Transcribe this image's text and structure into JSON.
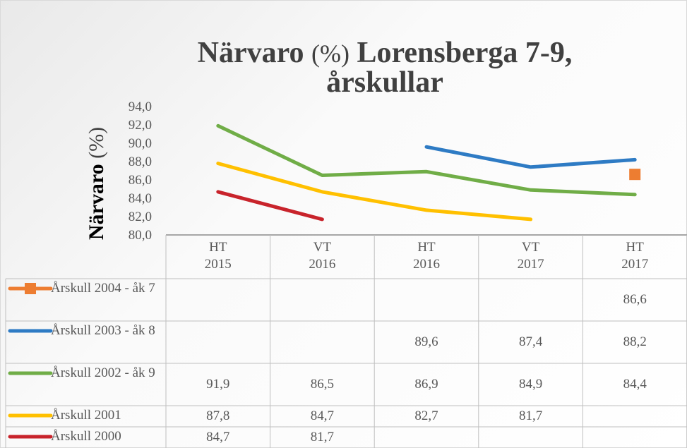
{
  "chart_data": {
    "type": "line",
    "title": [
      "Närvaro",
      "(%)",
      "Lorensberga 7-9,",
      "årskullar"
    ],
    "ylabel": [
      "Närvaro",
      "(%)"
    ],
    "categories": [
      "HT 2015",
      "VT 2016",
      "HT 2016",
      "VT 2017",
      "HT 2017"
    ],
    "ylim": [
      80,
      94
    ],
    "yticks": [
      {
        "value": 80,
        "label": "80,0"
      },
      {
        "value": 82,
        "label": "82,0"
      },
      {
        "value": 84,
        "label": "84,0"
      },
      {
        "value": 86,
        "label": "86,0"
      },
      {
        "value": 88,
        "label": "88,0"
      },
      {
        "value": 90,
        "label": "90,0"
      },
      {
        "value": 92,
        "label": "92,0"
      },
      {
        "value": 94,
        "label": "94,0"
      }
    ],
    "series": [
      {
        "name": "Årskull 2004 - åk 7",
        "color": "#ED7D31",
        "marker": "square",
        "values": [
          null,
          null,
          null,
          null,
          86.6
        ],
        "value_labels": [
          null,
          null,
          null,
          null,
          "86,6"
        ]
      },
      {
        "name": "Årskull 2003 - åk 8",
        "color": "#2E7BC4",
        "values": [
          null,
          null,
          89.6,
          87.4,
          88.2
        ],
        "value_labels": [
          null,
          null,
          "89,6",
          "87,4",
          "88,2"
        ]
      },
      {
        "name": "Årskull 2002 - åk 9",
        "color": "#70AD47",
        "values": [
          91.9,
          86.5,
          86.9,
          84.9,
          84.4
        ],
        "value_labels": [
          "91,9",
          "86,5",
          "86,9",
          "84,9",
          "84,4"
        ]
      },
      {
        "name": "Årskull 2001",
        "color": "#FFC000",
        "values": [
          87.8,
          84.7,
          82.7,
          81.7,
          null
        ],
        "value_labels": [
          "87,8",
          "84,7",
          "82,7",
          "81,7",
          null
        ]
      },
      {
        "name": "Årskull 2000",
        "color": "#C8232B",
        "values": [
          84.7,
          81.7,
          null,
          null,
          null
        ],
        "value_labels": [
          "84,7",
          "81,7",
          null,
          null,
          null
        ]
      }
    ]
  }
}
